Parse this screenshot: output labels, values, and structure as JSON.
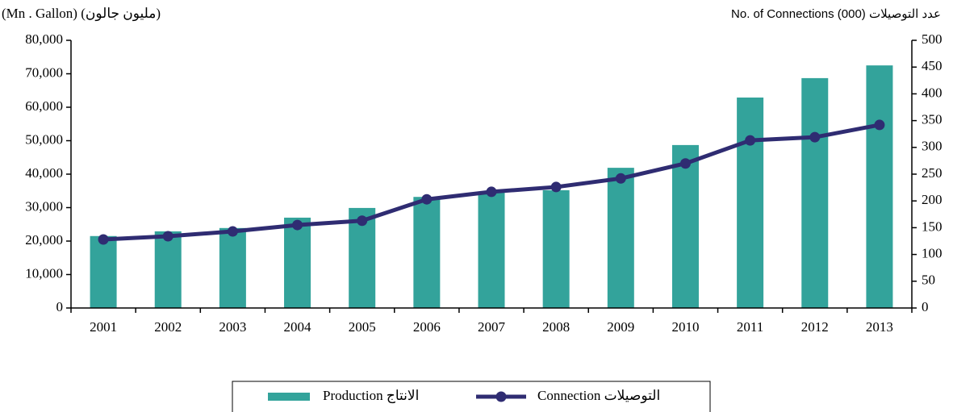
{
  "chart_data": {
    "type": "bar_line",
    "y_label": "(Mn . Gallon) (مليون جالون)",
    "y2_label": "No. of Connections (000)  عدد التوصيلات",
    "categories": [
      "2001",
      "2002",
      "2003",
      "2004",
      "2005",
      "2006",
      "2007",
      "2008",
      "2009",
      "2010",
      "2011",
      "2012",
      "2013"
    ],
    "series": [
      {
        "name": "Production الانتاج",
        "type": "bar",
        "color": "#33a39b",
        "axis": "y",
        "values": [
          21500,
          22900,
          23900,
          27000,
          29900,
          33200,
          34500,
          35200,
          41900,
          48700,
          62900,
          68700,
          72500
        ]
      },
      {
        "name": "Connection  التوصيلات",
        "type": "line",
        "color": "#2f2c72",
        "axis": "y2",
        "values": [
          128,
          134,
          143,
          155,
          163,
          203,
          217,
          226,
          242,
          270,
          313,
          319,
          342
        ]
      }
    ],
    "ylim": [
      0,
      80000
    ],
    "yticks": [
      0,
      {
        "value": 10000,
        "label": "10,000"
      },
      {
        "value": 20000,
        "label": "20,000"
      },
      {
        "value": 30000,
        "label": "30,000"
      },
      {
        "value": 40000,
        "label": "40,000"
      },
      {
        "value": 50000,
        "label": "50,000"
      },
      {
        "value": 60000,
        "label": "60,000"
      },
      {
        "value": 70000,
        "label": "70,000"
      },
      {
        "value": 80000,
        "label": "80,000"
      }
    ],
    "y2lim": [
      0,
      500
    ],
    "y2ticks": [
      0,
      50,
      100,
      150,
      200,
      250,
      300,
      350,
      400,
      450,
      500
    ],
    "legend": "bottom"
  }
}
